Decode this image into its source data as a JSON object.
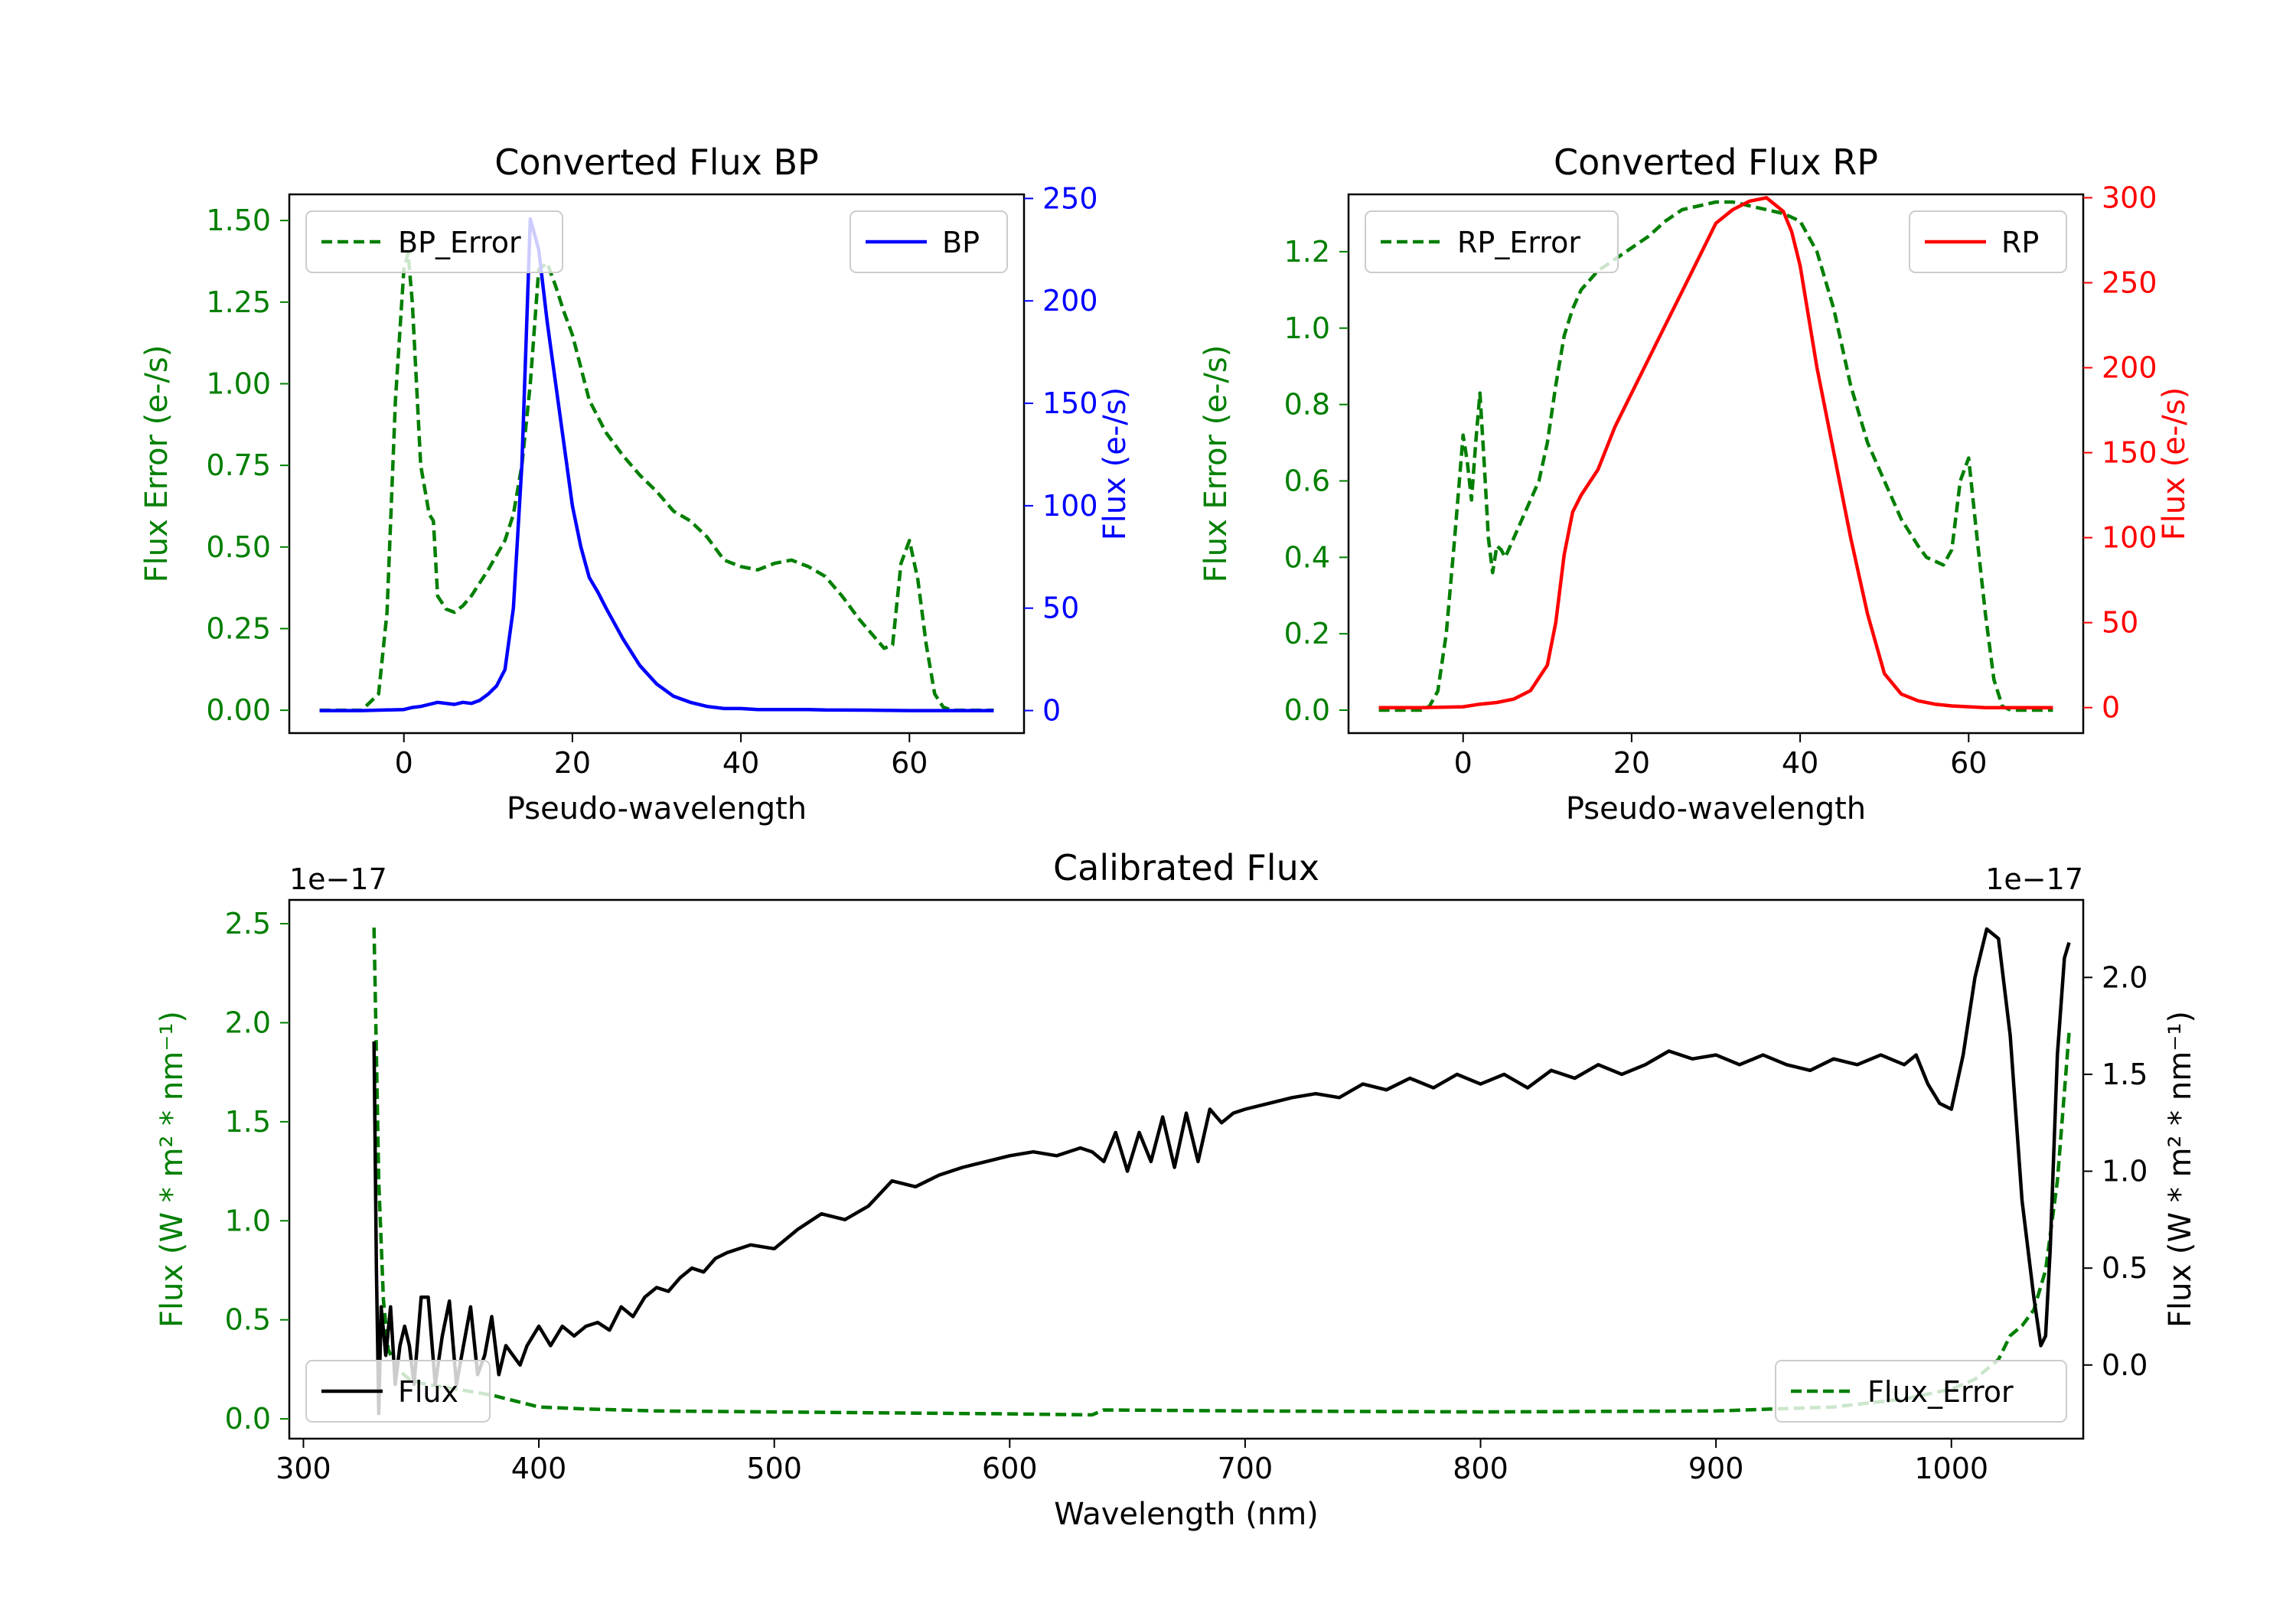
{
  "colors": {
    "green": "#007f00",
    "blue": "#0000ff",
    "red": "#ff0000",
    "black": "#000000"
  },
  "chart_data": [
    {
      "id": "bp",
      "type": "line",
      "title": "Converted Flux BP",
      "xlabel": "Pseudo-wavelength",
      "ylabel_left": "Flux Error (e-/s)",
      "ylabel_right": "Flux (e-/s)",
      "xlim": [
        -13.6,
        73.6
      ],
      "ylim_left": [
        -0.07,
        1.58
      ],
      "ylim_right": [
        -11,
        252
      ],
      "xticks": [
        0,
        20,
        40,
        60
      ],
      "yticks_left": [
        0.0,
        0.25,
        0.5,
        0.75,
        1.0,
        1.25,
        1.5
      ],
      "yticks_left_labels": [
        "0.00",
        "0.25",
        "0.50",
        "0.75",
        "1.00",
        "1.25",
        "1.50"
      ],
      "yticks_right": [
        0,
        50,
        100,
        150,
        200,
        250
      ],
      "left_legend": "BP_Error",
      "right_legend": "BP",
      "series": [
        {
          "name": "BP_Error",
          "axis": "left",
          "color": "#007f00",
          "dash": true,
          "x": [
            -10,
            -5,
            -3,
            -2,
            -1,
            0,
            0.5,
            1,
            2,
            3,
            3.5,
            4,
            5,
            6,
            7,
            8,
            10,
            12,
            13,
            14,
            15,
            16,
            17,
            18,
            19,
            20,
            21,
            22,
            24,
            26,
            28,
            30,
            32,
            34,
            36,
            38,
            40,
            42,
            44,
            46,
            48,
            50,
            52,
            54,
            56,
            57,
            58,
            59,
            60,
            61,
            62,
            63,
            64,
            65,
            70
          ],
          "values": [
            0,
            0,
            0.05,
            0.3,
            0.95,
            1.35,
            1.4,
            1.25,
            0.75,
            0.6,
            0.58,
            0.35,
            0.31,
            0.3,
            0.32,
            0.35,
            0.43,
            0.52,
            0.6,
            0.75,
            1.0,
            1.35,
            1.37,
            1.3,
            1.22,
            1.15,
            1.05,
            0.95,
            0.85,
            0.78,
            0.72,
            0.67,
            0.61,
            0.58,
            0.53,
            0.46,
            0.44,
            0.43,
            0.45,
            0.46,
            0.44,
            0.41,
            0.35,
            0.28,
            0.22,
            0.19,
            0.2,
            0.45,
            0.52,
            0.4,
            0.2,
            0.05,
            0.01,
            0,
            0
          ]
        },
        {
          "name": "BP",
          "axis": "right",
          "color": "#0000ff",
          "dash": false,
          "x": [
            -10,
            -5,
            0,
            1,
            2,
            3,
            4,
            5,
            6,
            7,
            8,
            9,
            10,
            11,
            12,
            13,
            14,
            15,
            16,
            17,
            18,
            19,
            20,
            21,
            22,
            23,
            24,
            26,
            28,
            30,
            32,
            34,
            36,
            38,
            40,
            42,
            44,
            46,
            48,
            50,
            55,
            60,
            65,
            70
          ],
          "values": [
            0,
            0,
            0.5,
            1.5,
            2,
            3,
            4,
            3.5,
            3,
            4,
            3.5,
            5,
            8,
            12,
            20,
            50,
            120,
            240,
            225,
            190,
            160,
            130,
            100,
            80,
            65,
            58,
            50,
            35,
            22,
            13,
            7,
            4,
            2,
            1,
            1,
            0.5,
            0.5,
            0.5,
            0.5,
            0.3,
            0.2,
            0,
            0,
            0
          ]
        }
      ]
    },
    {
      "id": "rp",
      "type": "line",
      "title": "Converted Flux RP",
      "xlabel": "Pseudo-wavelength",
      "ylabel_left": "Flux Error (e-/s)",
      "ylabel_right": "Flux (e-/s)",
      "xlim": [
        -13.6,
        73.6
      ],
      "ylim_left": [
        -0.06,
        1.35
      ],
      "ylim_right": [
        -15,
        302
      ],
      "xticks": [
        0,
        20,
        40,
        60
      ],
      "yticks_left": [
        0.0,
        0.2,
        0.4,
        0.6,
        0.8,
        1.0,
        1.2
      ],
      "yticks_left_labels": [
        "0.0",
        "0.2",
        "0.4",
        "0.6",
        "0.8",
        "1.0",
        "1.2"
      ],
      "yticks_right": [
        0,
        50,
        100,
        150,
        200,
        250,
        300
      ],
      "left_legend": "RP_Error",
      "right_legend": "RP",
      "series": [
        {
          "name": "RP_Error",
          "axis": "left",
          "color": "#007f00",
          "dash": true,
          "x": [
            -10,
            -5,
            -4,
            -3,
            -2,
            -1,
            0,
            0.5,
            1,
            1.5,
            2,
            2.5,
            3,
            3.5,
            4,
            4.5,
            5,
            6,
            7,
            8,
            9,
            10,
            11,
            12,
            13,
            14,
            16,
            18,
            20,
            22,
            24,
            26,
            28,
            30,
            32,
            34,
            36,
            38,
            40,
            42,
            44,
            46,
            48,
            50,
            52,
            54,
            55,
            56,
            57,
            58,
            59,
            60,
            61,
            62,
            63,
            64,
            65,
            70
          ],
          "values": [
            0,
            0,
            0.01,
            0.05,
            0.2,
            0.45,
            0.72,
            0.65,
            0.55,
            0.7,
            0.83,
            0.65,
            0.45,
            0.36,
            0.43,
            0.42,
            0.4,
            0.45,
            0.5,
            0.55,
            0.6,
            0.7,
            0.85,
            0.98,
            1.05,
            1.1,
            1.15,
            1.18,
            1.21,
            1.24,
            1.28,
            1.31,
            1.32,
            1.33,
            1.33,
            1.32,
            1.31,
            1.3,
            1.28,
            1.2,
            1.05,
            0.85,
            0.7,
            0.6,
            0.5,
            0.43,
            0.4,
            0.39,
            0.38,
            0.42,
            0.6,
            0.66,
            0.45,
            0.25,
            0.08,
            0.01,
            0,
            0
          ]
        },
        {
          "name": "RP",
          "axis": "right",
          "color": "#ff0000",
          "dash": false,
          "x": [
            -10,
            -5,
            0,
            2,
            4,
            6,
            8,
            10,
            11,
            12,
            13,
            14,
            16,
            18,
            20,
            22,
            24,
            26,
            28,
            30,
            32,
            34,
            36,
            38,
            39,
            40,
            42,
            44,
            46,
            48,
            50,
            52,
            54,
            56,
            58,
            60,
            62,
            65,
            70
          ],
          "values": [
            0,
            0,
            0.5,
            2,
            3,
            5,
            10,
            25,
            50,
            90,
            115,
            125,
            140,
            165,
            185,
            205,
            225,
            245,
            265,
            285,
            293,
            298,
            300,
            292,
            280,
            260,
            200,
            150,
            100,
            55,
            20,
            8,
            4,
            2,
            1,
            0.5,
            0,
            0,
            0
          ]
        }
      ]
    },
    {
      "id": "cal",
      "type": "line",
      "title": "Calibrated Flux",
      "xlabel": "Wavelength (nm)",
      "ylabel_left": "Flux (W * m² * nm⁻¹)",
      "ylabel_right": "Flux (W * m² * nm⁻¹)",
      "offset_left": "1e−17",
      "offset_right": "1e−17",
      "xlim": [
        294,
        1056
      ],
      "ylim_left": [
        -0.1,
        2.62
      ],
      "ylim_right": [
        -0.38,
        2.4
      ],
      "xticks": [
        300,
        400,
        500,
        600,
        700,
        800,
        900,
        1000
      ],
      "yticks_left": [
        0.0,
        0.5,
        1.0,
        1.5,
        2.0,
        2.5
      ],
      "yticks_left_labels": [
        "0.0",
        "0.5",
        "1.0",
        "1.5",
        "2.0",
        "2.5"
      ],
      "yticks_right": [
        0.0,
        0.5,
        1.0,
        1.5,
        2.0
      ],
      "yticks_right_labels": [
        "0.0",
        "0.5",
        "1.0",
        "1.5",
        "2.0"
      ],
      "left_legend": "Flux",
      "right_legend": "Flux_Error",
      "series": [
        {
          "name": "Flux_Error",
          "axis": "left",
          "color": "#007f00",
          "dash": true,
          "x": [
            330,
            332,
            334,
            336,
            340,
            345,
            350,
            360,
            370,
            380,
            390,
            400,
            420,
            450,
            500,
            550,
            600,
            635,
            640,
            700,
            800,
            900,
            950,
            980,
            1000,
            1010,
            1020,
            1025,
            1030,
            1035,
            1040,
            1045,
            1050
          ],
          "values": [
            2.48,
            1.2,
            0.6,
            0.35,
            0.25,
            0.2,
            0.18,
            0.16,
            0.14,
            0.12,
            0.09,
            0.06,
            0.05,
            0.04,
            0.035,
            0.03,
            0.025,
            0.02,
            0.045,
            0.04,
            0.035,
            0.04,
            0.06,
            0.1,
            0.15,
            0.2,
            0.3,
            0.42,
            0.47,
            0.55,
            0.75,
            1.2,
            1.95
          ]
        },
        {
          "name": "Flux",
          "axis": "right",
          "color": "#000000",
          "dash": false,
          "x": [
            330,
            331,
            332,
            333,
            335,
            337,
            339,
            341,
            343,
            345,
            347,
            350,
            353,
            356,
            359,
            362,
            365,
            368,
            371,
            374,
            377,
            380,
            383,
            386,
            389,
            392,
            395,
            400,
            405,
            410,
            415,
            420,
            425,
            430,
            435,
            440,
            445,
            450,
            455,
            460,
            465,
            470,
            475,
            480,
            490,
            500,
            510,
            520,
            530,
            540,
            550,
            560,
            570,
            580,
            590,
            600,
            610,
            620,
            630,
            635,
            640,
            645,
            650,
            655,
            660,
            665,
            670,
            675,
            680,
            685,
            690,
            695,
            700,
            710,
            720,
            730,
            740,
            750,
            760,
            770,
            780,
            790,
            800,
            810,
            820,
            830,
            840,
            850,
            860,
            870,
            880,
            890,
            900,
            910,
            920,
            930,
            940,
            950,
            960,
            970,
            980,
            985,
            990,
            995,
            1000,
            1005,
            1010,
            1015,
            1020,
            1025,
            1030,
            1035,
            1038,
            1040,
            1042,
            1045,
            1048,
            1050
          ],
          "values": [
            1.67,
            0.5,
            -0.25,
            0.3,
            0.05,
            0.3,
            -0.1,
            0.1,
            0.2,
            0.1,
            -0.1,
            0.35,
            0.35,
            -0.1,
            0.15,
            0.33,
            -0.1,
            0.1,
            0.3,
            -0.05,
            0.05,
            0.25,
            -0.05,
            0.1,
            0.05,
            0.0,
            0.1,
            0.2,
            0.1,
            0.2,
            0.15,
            0.2,
            0.22,
            0.18,
            0.3,
            0.25,
            0.35,
            0.4,
            0.38,
            0.45,
            0.5,
            0.48,
            0.55,
            0.58,
            0.62,
            0.6,
            0.7,
            0.78,
            0.75,
            0.82,
            0.95,
            0.92,
            0.98,
            1.02,
            1.05,
            1.08,
            1.1,
            1.08,
            1.12,
            1.1,
            1.05,
            1.2,
            1.0,
            1.2,
            1.05,
            1.28,
            1.02,
            1.3,
            1.05,
            1.32,
            1.25,
            1.3,
            1.32,
            1.35,
            1.38,
            1.4,
            1.38,
            1.45,
            1.42,
            1.48,
            1.43,
            1.5,
            1.45,
            1.5,
            1.43,
            1.52,
            1.48,
            1.55,
            1.5,
            1.55,
            1.62,
            1.58,
            1.6,
            1.55,
            1.6,
            1.55,
            1.52,
            1.58,
            1.55,
            1.6,
            1.55,
            1.6,
            1.45,
            1.35,
            1.32,
            1.6,
            2.0,
            2.25,
            2.2,
            1.7,
            0.85,
            0.35,
            0.1,
            0.15,
            0.6,
            1.6,
            2.1,
            2.18
          ]
        }
      ]
    }
  ]
}
